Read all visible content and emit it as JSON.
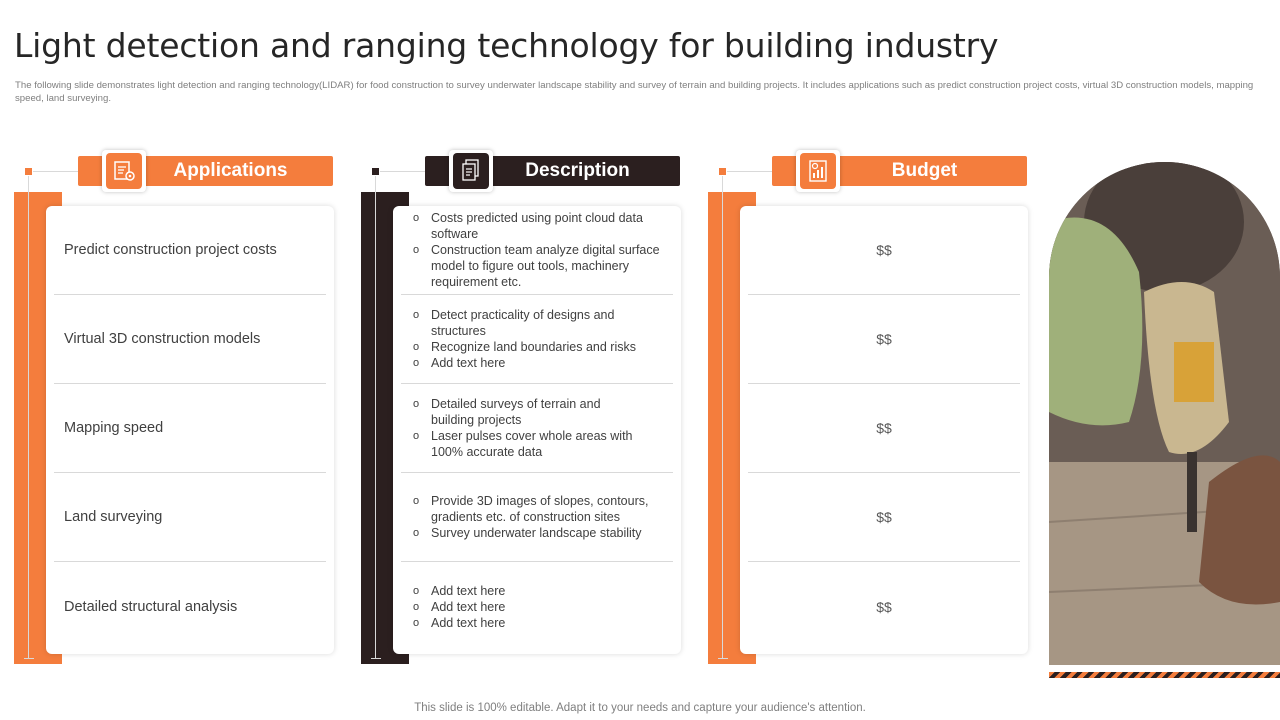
{
  "slide": {
    "title": "Light detection and ranging technology for building industry",
    "subtitle": "The following slide demonstrates light detection and ranging technology(LIDAR)   for food construction to survey underwater landscape stability and survey of terrain and building projects. It includes applications such as predict construction project costs, virtual 3D construction models, mapping speed, land surveying.",
    "footer": "This slide is 100% editable. Adapt it to your needs and capture your audience's attention."
  },
  "colors": {
    "accent": "#f47d3d",
    "dark": "#2b1f1f",
    "divider": "#d9d9d9"
  },
  "applications": {
    "header": "Applications",
    "icon": "settings-document-icon",
    "items": [
      "Predict construction project costs",
      "Virtual 3D construction models",
      "Mapping speed",
      "Land surveying",
      "Detailed structural analysis"
    ]
  },
  "description": {
    "header": "Description",
    "icon": "documents-icon",
    "rows": [
      [
        "Costs predicted using point cloud data software",
        "Construction team analyze digital surface model to figure out tools, machinery requirement etc."
      ],
      [
        "Detect practicality of designs and structures",
        "Recognize land boundaries and risks",
        "Add text here"
      ],
      [
        "Detailed surveys of terrain and building projects",
        "Laser pulses cover whole areas with 100% accurate data"
      ],
      [
        "Provide 3D images of slopes, contours, gradients etc. of construction sites",
        "Survey underwater landscape stability"
      ],
      [
        "Add text here",
        "Add text here",
        "Add text here"
      ]
    ]
  },
  "budget": {
    "header": "Budget",
    "icon": "budget-chart-icon",
    "items": [
      "$$",
      "$$",
      "$$",
      "$$",
      "$$"
    ]
  },
  "photo": {
    "icon": "construction-drill-photo"
  }
}
